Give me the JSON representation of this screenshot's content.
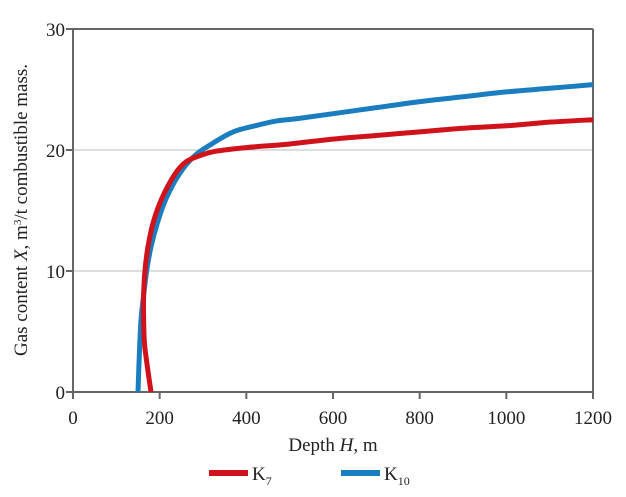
{
  "chart_data": {
    "type": "line",
    "title": "",
    "xlabel_parts": [
      "Depth ",
      "H",
      ", m"
    ],
    "ylabel_parts": [
      "Gas content ",
      "X",
      ", m",
      "3",
      "/t combustible mass."
    ],
    "xlim": [
      0,
      1200
    ],
    "ylim": [
      0,
      30
    ],
    "xticks": [
      "0",
      "200",
      "400",
      "600",
      "800",
      "1000",
      "1200"
    ],
    "yticks": [
      "0",
      "10",
      "20",
      "30"
    ],
    "xtick_values": [
      0,
      200,
      400,
      600,
      800,
      1000,
      1200
    ],
    "ytick_values": [
      0,
      10,
      20,
      30
    ],
    "grid": "horizontal",
    "legend": "bottom",
    "series": [
      {
        "name": "K7",
        "label_main": "K",
        "label_sub": "7",
        "color": "#d0121b",
        "points": [
          [
            180,
            0
          ],
          [
            172,
            2
          ],
          [
            165,
            4
          ],
          [
            163,
            6
          ],
          [
            163,
            8
          ],
          [
            166,
            10
          ],
          [
            173,
            12
          ],
          [
            185,
            14
          ],
          [
            205,
            16
          ],
          [
            235,
            18
          ],
          [
            260,
            19
          ],
          [
            290,
            19.5
          ],
          [
            330,
            19.9
          ],
          [
            400,
            20.2
          ],
          [
            500,
            20.5
          ],
          [
            600,
            20.9
          ],
          [
            700,
            21.2
          ],
          [
            800,
            21.5
          ],
          [
            900,
            21.8
          ],
          [
            1000,
            22.0
          ],
          [
            1100,
            22.3
          ],
          [
            1200,
            22.5
          ]
        ]
      },
      {
        "name": "K10",
        "label_main": "K",
        "label_sub": "10",
        "color": "#1a7dbf",
        "points": [
          [
            150,
            0
          ],
          [
            153,
            3
          ],
          [
            157,
            6
          ],
          [
            163,
            8
          ],
          [
            170,
            10
          ],
          [
            180,
            12
          ],
          [
            195,
            14
          ],
          [
            215,
            16
          ],
          [
            245,
            18
          ],
          [
            280,
            19.5
          ],
          [
            320,
            20.5
          ],
          [
            370,
            21.5
          ],
          [
            420,
            22.0
          ],
          [
            470,
            22.4
          ],
          [
            520,
            22.6
          ],
          [
            600,
            23.0
          ],
          [
            700,
            23.5
          ],
          [
            800,
            24.0
          ],
          [
            900,
            24.4
          ],
          [
            1000,
            24.8
          ],
          [
            1100,
            25.1
          ],
          [
            1200,
            25.4
          ]
        ]
      }
    ]
  }
}
